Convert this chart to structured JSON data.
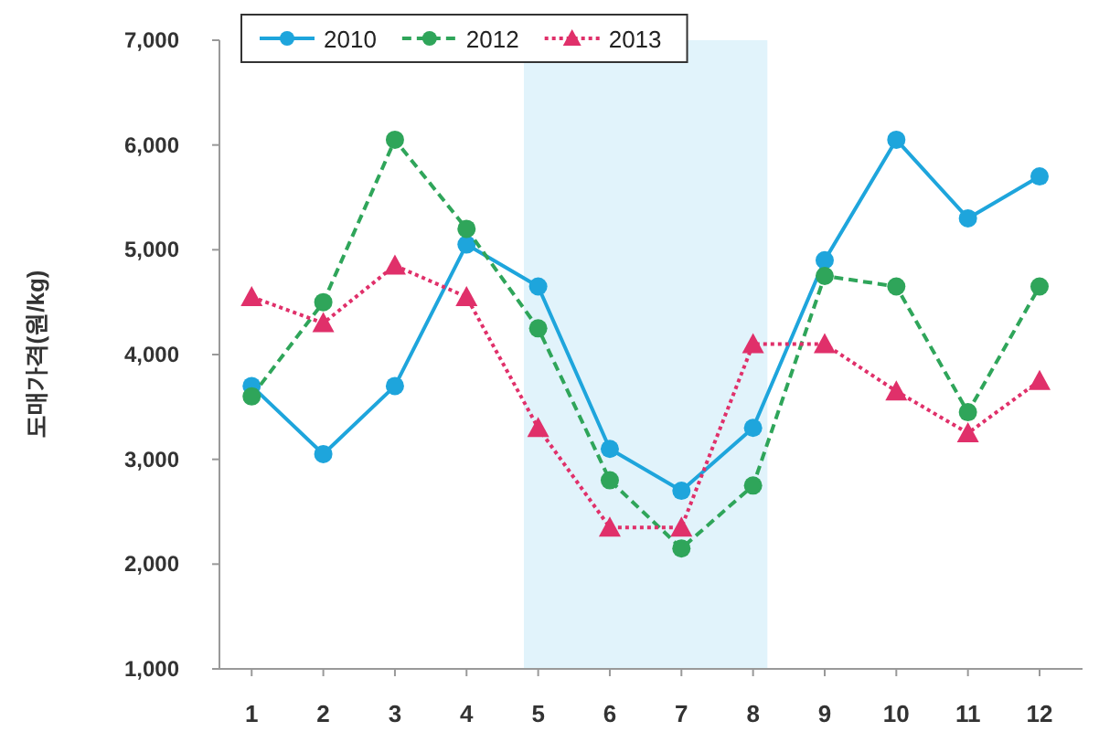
{
  "chart_data": {
    "type": "line",
    "ylabel": "도매가격(원/kg)",
    "x": [
      1,
      2,
      3,
      4,
      5,
      6,
      7,
      8,
      9,
      10,
      11,
      12
    ],
    "xlim": [
      0.55,
      12.6
    ],
    "xticks": [
      1,
      2,
      3,
      4,
      5,
      6,
      7,
      8,
      9,
      10,
      11,
      12
    ],
    "ylim": [
      1000,
      7000
    ],
    "yticks": [
      {
        "value": 1000,
        "label": "1,000"
      },
      {
        "value": 2000,
        "label": "2,000"
      },
      {
        "value": 3000,
        "label": "3,000"
      },
      {
        "value": 4000,
        "label": "4,000"
      },
      {
        "value": 5000,
        "label": "5,000"
      },
      {
        "value": 6000,
        "label": "6,000"
      },
      {
        "value": 7000,
        "label": "7,000"
      }
    ],
    "grid": false,
    "legend": "top left",
    "bands": [
      {
        "axis": "x",
        "from": 4.8,
        "to": 8.2,
        "color": "#e1f3fb"
      }
    ],
    "series": [
      {
        "name": "2010",
        "color": "#1ea5dc",
        "marker": "circle",
        "line_style": "solid",
        "values": [
          3700,
          3050,
          3700,
          5050,
          4650,
          3100,
          2700,
          3300,
          4900,
          6050,
          5300,
          5700
        ]
      },
      {
        "name": "2012",
        "color": "#2fa55a",
        "marker": "circle",
        "line_style": "dashed",
        "values": [
          3600,
          4500,
          6050,
          5200,
          4250,
          2800,
          2150,
          2750,
          4750,
          4650,
          3450,
          4650
        ]
      },
      {
        "name": "2013",
        "color": "#e0306a",
        "marker": "triangle",
        "line_style": "dotted",
        "values": [
          4550,
          4300,
          4850,
          4550,
          3300,
          2350,
          2350,
          4100,
          4100,
          3650,
          3250,
          3750
        ]
      }
    ]
  }
}
